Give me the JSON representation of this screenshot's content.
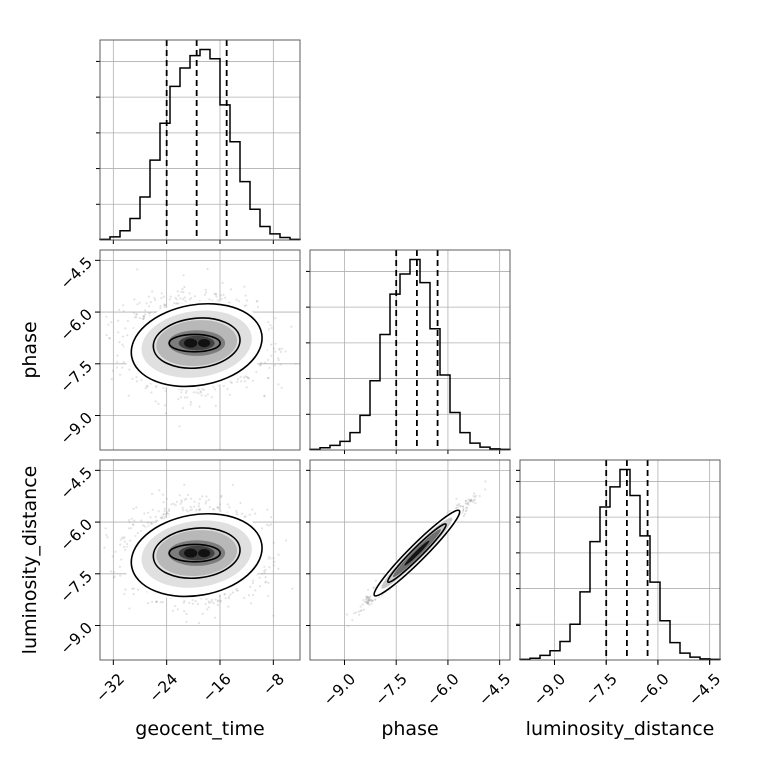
{
  "chart_data": {
    "type": "corner",
    "parameters": [
      {
        "key": "geocent_time",
        "label": "geocent_time",
        "ticks": [
          -32,
          -24,
          -16,
          -8
        ],
        "range": [
          -34,
          -4
        ]
      },
      {
        "key": "phase",
        "label": "phase",
        "ticks": [
          -9.0,
          -7.5,
          -6.0,
          -4.5
        ],
        "tick_labels": [
          "−9.0",
          "−7.5",
          "−6.0",
          "−4.5"
        ],
        "range": [
          -10.0,
          -4.2
        ]
      },
      {
        "key": "luminosity_distance",
        "label": "luminosity_distance",
        "ticks": [
          -9.0,
          -7.5,
          -6.0,
          -4.5
        ],
        "tick_labels": [
          "−9.0",
          "−7.5",
          "−6.0",
          "−4.5"
        ],
        "range": [
          -10.0,
          -4.2
        ]
      }
    ],
    "tick_labels_geocent": [
      "−32",
      "−24",
      "−16",
      "−8"
    ],
    "quantiles": {
      "geocent_time": [
        -24.0,
        -19.5,
        -15.0
      ],
      "phase": [
        -7.5,
        -6.9,
        -6.3
      ],
      "luminosity_distance": [
        -7.5,
        -6.9,
        -6.3
      ]
    },
    "histograms": {
      "geocent_time": {
        "edges": [
          -34,
          -32.5,
          -31,
          -29.5,
          -28,
          -26.5,
          -25,
          -23.5,
          -22,
          -20.5,
          -19,
          -17.5,
          -16,
          -14.5,
          -13,
          -11.5,
          -10,
          -8.5,
          -7,
          -5.5,
          -4
        ],
        "counts": [
          1,
          5,
          15,
          35,
          70,
          130,
          190,
          250,
          280,
          300,
          310,
          295,
          220,
          160,
          95,
          50,
          22,
          10,
          4,
          1
        ]
      },
      "phase": {
        "edges": [
          -10.0,
          -9.71,
          -9.42,
          -9.13,
          -8.84,
          -8.55,
          -8.26,
          -7.97,
          -7.68,
          -7.39,
          -7.1,
          -6.81,
          -6.52,
          -6.23,
          -5.94,
          -5.65,
          -5.36,
          -5.07,
          -4.78,
          -4.49,
          -4.2
        ],
        "counts": [
          1,
          4,
          8,
          15,
          30,
          60,
          120,
          200,
          270,
          305,
          330,
          290,
          210,
          130,
          65,
          30,
          12,
          5,
          2,
          1
        ]
      },
      "luminosity_distance": {
        "edges": [
          -10.0,
          -9.71,
          -9.42,
          -9.13,
          -8.84,
          -8.55,
          -8.26,
          -7.97,
          -7.68,
          -7.39,
          -7.1,
          -6.81,
          -6.52,
          -6.23,
          -5.94,
          -5.65,
          -5.36,
          -5.07,
          -4.78,
          -4.49,
          -4.2
        ],
        "counts": [
          1,
          3,
          8,
          16,
          32,
          62,
          118,
          205,
          265,
          300,
          330,
          285,
          215,
          135,
          68,
          30,
          12,
          5,
          2,
          1
        ]
      }
    },
    "grid": true,
    "colors": {
      "samples": "#9a9a9a",
      "contour": "#000000",
      "density_dark": "#000000"
    }
  }
}
